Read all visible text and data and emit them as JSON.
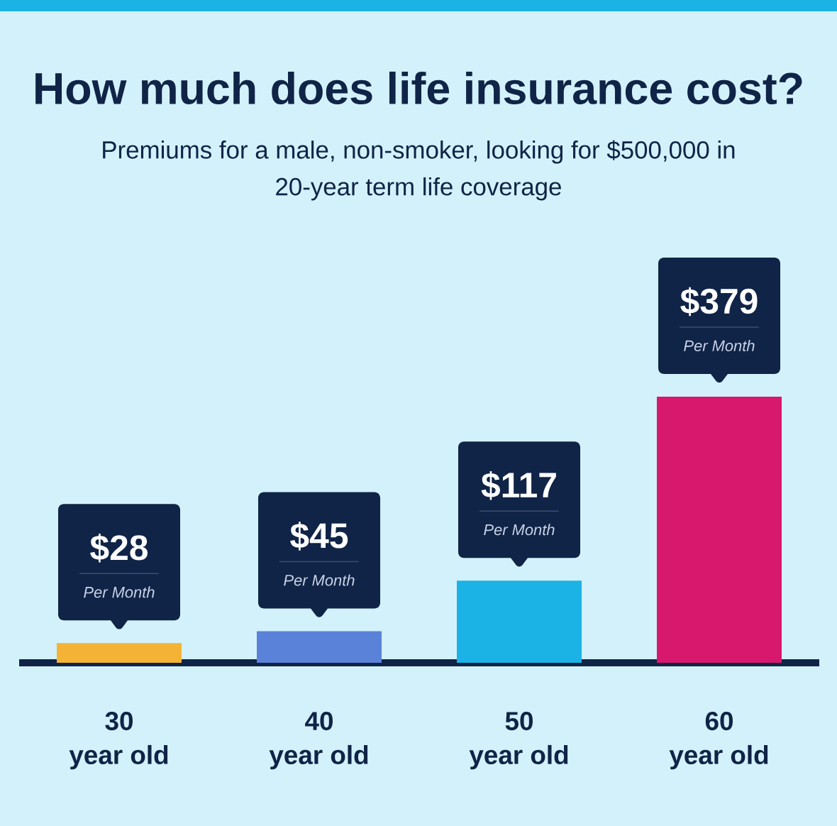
{
  "chart_data": {
    "type": "bar",
    "title": "How much does life insurance cost?",
    "subtitle": "Premiums for a male, non-smoker, looking for $500,000 in 20-year term life coverage",
    "categories": [
      "30 year old",
      "40 year old",
      "50 year old",
      "60 year old"
    ],
    "values": [
      28,
      45,
      117,
      379
    ],
    "colors": [
      "#f5b335",
      "#5a82d8",
      "#1bb2e5",
      "#d8186c"
    ],
    "value_labels": [
      "$28",
      "$45",
      "$117",
      "$379"
    ],
    "annotations": [
      "Per Month",
      "Per Month",
      "Per Month",
      "Per Month"
    ]
  }
}
